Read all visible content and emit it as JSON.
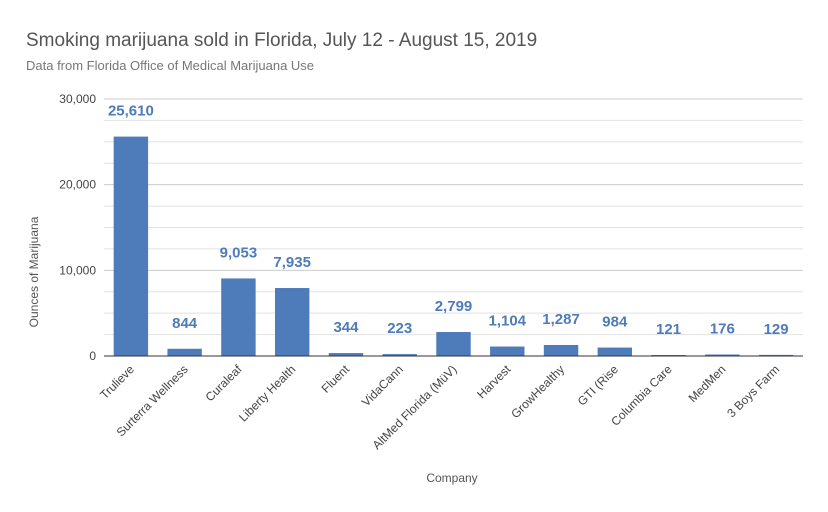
{
  "chart_data": {
    "type": "bar",
    "title": "Smoking marijuana sold in Florida, July 12 - August 15, 2019",
    "subtitle": "Data from Florida Office of Medical Marijuana Use",
    "xlabel": "Company",
    "ylabel": "Ounces of Marijuana",
    "ylim": [
      0,
      30000
    ],
    "yticks": [
      {
        "value": 0,
        "label": "0"
      },
      {
        "value": 10000,
        "label": "10,000"
      },
      {
        "value": 20000,
        "label": "20,000"
      },
      {
        "value": 30000,
        "label": "30,000"
      }
    ],
    "minor_grid_step": 2500,
    "grid": true,
    "legend": "none",
    "bar_color": "#4e7bb9",
    "categories": [
      "Trulieve",
      "Surterra Wellness",
      "Curaleaf",
      "Liberty Health",
      "Fluent",
      "VidaCann",
      "AltMed Florida (MüV)",
      "Harvest",
      "GrowHealthy",
      "GTI (Rise",
      "Columbia Care",
      "MedMen",
      "3 Boys Farm"
    ],
    "values": [
      25610,
      844,
      9053,
      7935,
      344,
      223,
      2799,
      1104,
      1287,
      984,
      121,
      176,
      129
    ],
    "data_labels": [
      "25,610",
      "844",
      "9,053",
      "7,935",
      "344",
      "223",
      "2,799",
      "1,104",
      "1,287",
      "984",
      "121",
      "176",
      "129"
    ]
  }
}
